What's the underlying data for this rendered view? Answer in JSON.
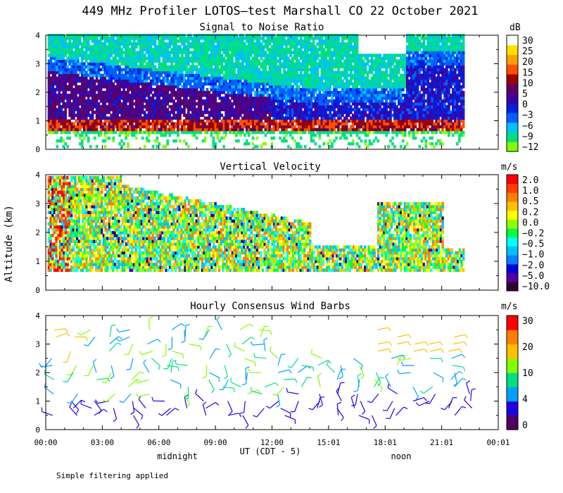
{
  "header": {
    "title": "449 MHz Profiler LOTOS—test Marshall CO 22 October 2021",
    "footnote": "Simple filtering applied"
  },
  "axes": {
    "ylabel": "Altitude (km)",
    "xlabel": "UT  (CDT - 5)",
    "xticks": [
      "00:00",
      "03:00",
      "06:00",
      "09:00",
      "12:00",
      "15:01",
      "18:01",
      "21:01",
      "00:01"
    ],
    "yticks": [
      "0",
      "1",
      "2",
      "3",
      "4"
    ],
    "local_labels": [
      "midnight",
      "noon"
    ]
  },
  "colors": {
    "snr": [
      "#80ff00",
      "#00e080",
      "#00c0ff",
      "#0060ff",
      "#0020e0",
      "#4000a0",
      "#600060",
      "#a00000",
      "#ff5000",
      "#ffa000",
      "#ffe000",
      "#ffffff"
    ],
    "vel": [
      "#300030",
      "#5000a0",
      "#0000e0",
      "#0080ff",
      "#00c0ff",
      "#00ffff",
      "#00ff40",
      "#90ff00",
      "#ffff00",
      "#ffc000",
      "#ff8000",
      "#ff4000",
      "#ff0000"
    ],
    "wind": [
      "#500060",
      "#2000e0",
      "#00a0ff",
      "#00e080",
      "#80ff00",
      "#ffc000",
      "#ff8000",
      "#ff0000"
    ]
  },
  "chart_data": [
    {
      "type": "heatmap",
      "title": "Signal to Noise Ratio",
      "unit": "dB",
      "ylim": [
        0,
        4
      ],
      "xlim_hours": [
        0,
        24
      ],
      "colorbar_ticks": [
        "30",
        "25",
        "20",
        "15",
        "10",
        "5",
        "0",
        "−3",
        "−6",
        "−9",
        "−12"
      ],
      "colorbar_values": [
        30,
        25,
        20,
        15,
        10,
        5,
        0,
        -3,
        -6,
        -9,
        -12
      ]
    },
    {
      "type": "heatmap",
      "title": "Vertical Velocity",
      "unit": "m/s",
      "ylim": [
        0,
        4
      ],
      "xlim_hours": [
        0,
        24
      ],
      "colorbar_ticks": [
        "2.0",
        "1.0",
        "0.5",
        "0.2",
        "0.0",
        "−0.2",
        "−0.5",
        "−1.0",
        "−2.0",
        "−5.0",
        "−10.0"
      ],
      "colorbar_values": [
        2.0,
        1.0,
        0.5,
        0.2,
        0.0,
        -0.2,
        -0.5,
        -1.0,
        -2.0,
        -5.0,
        -10.0
      ]
    },
    {
      "type": "scatter",
      "title": "Hourly Consensus Wind Barbs",
      "unit": "m/s",
      "ylim": [
        0,
        4
      ],
      "xlim_hours": [
        0,
        24
      ],
      "colorbar_ticks": [
        "30",
        "20",
        "10",
        "4",
        "0"
      ],
      "colorbar_values": [
        30,
        20,
        10,
        4,
        0
      ]
    }
  ]
}
